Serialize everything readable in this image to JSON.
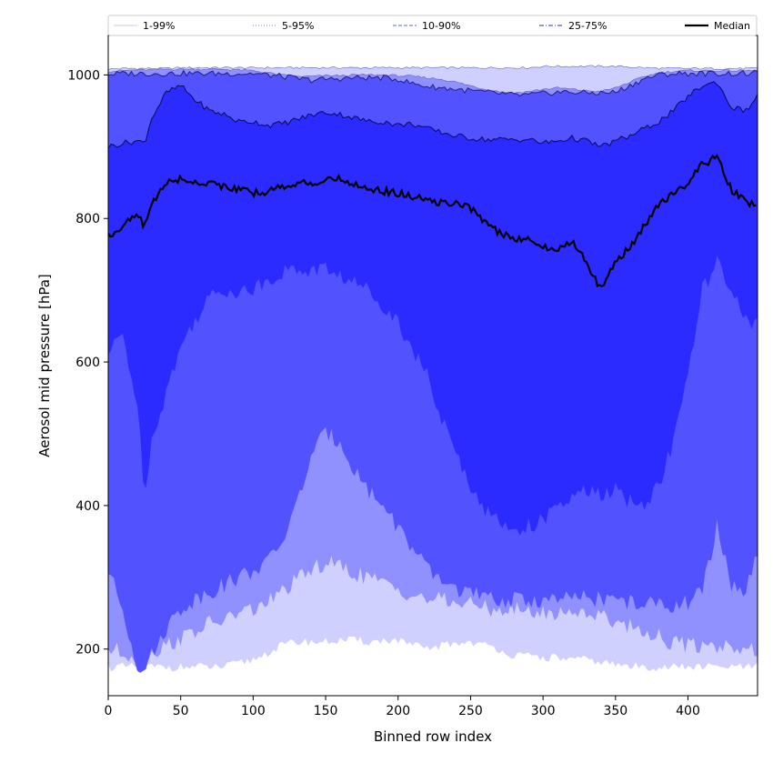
{
  "chart_data": {
    "type": "area",
    "title": "",
    "xlabel": "Binned row index",
    "ylabel": "Aerosol mid pressure [hPa]",
    "xlim": [
      0,
      448
    ],
    "ylim": [
      135,
      1055
    ],
    "xticks": [
      0,
      50,
      100,
      150,
      200,
      250,
      300,
      350,
      400
    ],
    "yticks": [
      200,
      400,
      600,
      800,
      1000
    ],
    "grid": false,
    "legend_position": "top",
    "legend": [
      {
        "label": "1-99%",
        "color": "#d3d3f5",
        "style": "solid"
      },
      {
        "label": "5-95%",
        "color": "#9a9ae8",
        "style": "dotted"
      },
      {
        "label": "10-90%",
        "color": "#8080f0",
        "style": "dashed"
      },
      {
        "label": "25-75%",
        "color": "#5050e6",
        "style": "dashdot"
      },
      {
        "label": "Median",
        "color": "#000000",
        "style": "solid"
      }
    ],
    "x": [
      0,
      10,
      20,
      25,
      30,
      40,
      50,
      60,
      70,
      80,
      90,
      100,
      110,
      120,
      130,
      140,
      150,
      160,
      170,
      180,
      190,
      200,
      210,
      220,
      230,
      240,
      250,
      260,
      270,
      280,
      290,
      300,
      310,
      320,
      330,
      340,
      350,
      360,
      370,
      380,
      390,
      400,
      410,
      420,
      430,
      440,
      448
    ],
    "bands": [
      {
        "name": "1-99%",
        "color": "#d0d0ff",
        "lower": [
          175,
          175,
          175,
          175,
          175,
          175,
          175,
          175,
          175,
          175,
          180,
          185,
          195,
          205,
          210,
          210,
          210,
          212,
          212,
          210,
          212,
          212,
          205,
          200,
          205,
          208,
          210,
          205,
          200,
          190,
          190,
          188,
          188,
          185,
          185,
          182,
          178,
          176,
          175,
          175,
          175,
          175,
          175,
          175,
          175,
          175,
          175
        ],
        "upper": [
          1008,
          1009,
          1009,
          1009,
          1009,
          1009,
          1010,
          1010,
          1010,
          1010,
          1010,
          1010,
          1010,
          1010,
          1010,
          1010,
          1010,
          1010,
          1010,
          1010,
          1010,
          1010,
          1010,
          1010,
          1010,
          1010,
          1010,
          1010,
          1010,
          1010,
          1010,
          1012,
          1012,
          1012,
          1012,
          1012,
          1012,
          1011,
          1010,
          1009,
          1009,
          1009,
          1009,
          1009,
          1009,
          1009,
          1009
        ]
      },
      {
        "name": "5-95%",
        "color": "#9090ff",
        "lower": [
          200,
          195,
          190,
          190,
          195,
          205,
          215,
          225,
          235,
          240,
          250,
          255,
          265,
          280,
          295,
          310,
          320,
          315,
          305,
          300,
          290,
          285,
          275,
          270,
          268,
          265,
          262,
          258,
          255,
          255,
          252,
          250,
          250,
          252,
          252,
          245,
          240,
          232,
          225,
          218,
          208,
          205,
          205,
          205,
          205,
          200,
          195
        ],
        "upper": [
          1005,
          1006,
          1007,
          1007,
          1007,
          1008,
          1008,
          1008,
          1008,
          1008,
          1007,
          1006,
          1003,
          1000,
          998,
          998,
          999,
          999,
          1000,
          1000,
          1000,
          999,
          998,
          996,
          994,
          990,
          985,
          980,
          977,
          975,
          977,
          980,
          982,
          980,
          978,
          977,
          982,
          990,
          998,
          1003,
          1005,
          1006,
          1006,
          1006,
          1006,
          1006,
          1006
        ]
      },
      {
        "name": "10-90%",
        "color": "#5252ff",
        "lower": [
          310,
          255,
          178,
          176,
          190,
          230,
          255,
          270,
          280,
          290,
          300,
          310,
          320,
          350,
          400,
          470,
          500,
          490,
          450,
          420,
          400,
          370,
          340,
          310,
          295,
          285,
          278,
          270,
          268,
          268,
          268,
          268,
          268,
          270,
          272,
          270,
          268,
          265,
          262,
          262,
          262,
          265,
          280,
          370,
          290,
          280,
          330
        ],
        "upper": [
          1001,
          1002,
          1002,
          1002,
          1002,
          1002,
          1002,
          1002,
          1002,
          1002,
          1002,
          1002,
          1000,
          998,
          995,
          993,
          994,
          995,
          996,
          996,
          996,
          994,
          988,
          984,
          982,
          980,
          978,
          976,
          974,
          972,
          972,
          974,
          976,
          976,
          975,
          975,
          976,
          985,
          995,
          1000,
          1002,
          1002,
          1002,
          1002,
          1002,
          1002,
          1002
        ]
      },
      {
        "name": "25-75%",
        "color": "#2b2bff",
        "lower": [
          610,
          640,
          540,
          420,
          490,
          560,
          620,
          660,
          690,
          700,
          700,
          700,
          715,
          725,
          728,
          728,
          730,
          720,
          710,
          700,
          680,
          655,
          620,
          580,
          520,
          470,
          430,
          395,
          375,
          368,
          372,
          380,
          395,
          410,
          420,
          415,
          420,
          405,
          400,
          430,
          490,
          580,
          700,
          740,
          690,
          665,
          650
        ],
        "upper": [
          900,
          905,
          908,
          905,
          940,
          975,
          985,
          965,
          950,
          945,
          935,
          935,
          930,
          932,
          938,
          944,
          948,
          945,
          940,
          935,
          935,
          930,
          932,
          925,
          920,
          915,
          912,
          910,
          910,
          910,
          910,
          905,
          908,
          912,
          908,
          900,
          908,
          915,
          925,
          935,
          950,
          970,
          985,
          990,
          955,
          950,
          970
        ]
      }
    ],
    "median": {
      "name": "Median",
      "color": "#000000",
      "values": [
        775,
        790,
        805,
        790,
        820,
        850,
        855,
        850,
        850,
        845,
        840,
        835,
        838,
        845,
        848,
        850,
        852,
        855,
        848,
        842,
        838,
        835,
        830,
        825,
        822,
        820,
        815,
        795,
        780,
        770,
        775,
        760,
        755,
        770,
        740,
        700,
        740,
        760,
        790,
        820,
        835,
        850,
        875,
        885,
        840,
        822,
        820
      ]
    }
  }
}
